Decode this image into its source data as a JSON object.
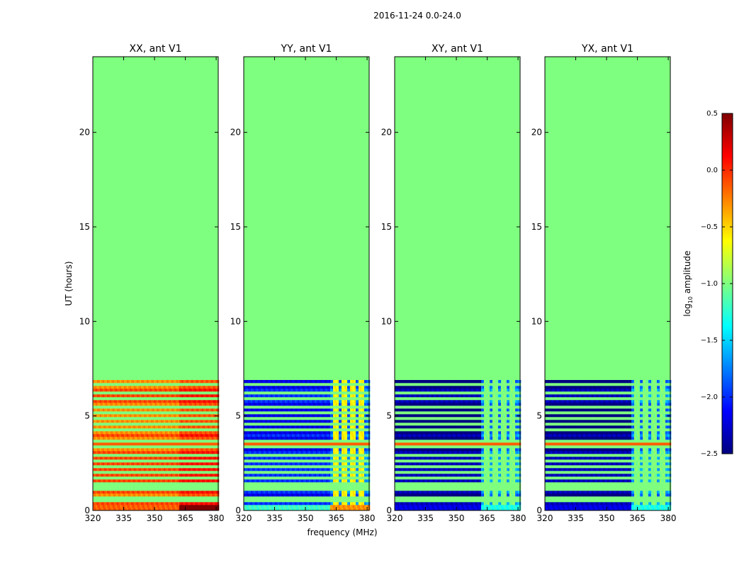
{
  "figure": {
    "suptitle": "2016-11-24 0.0-24.0",
    "ylabel": "UT (hours)",
    "xlabel": "frequency (MHz)"
  },
  "colorbar": {
    "label": "log$_{10}$ amplitude",
    "label_main": "log",
    "label_sub": "10",
    "label_rest": " amplitude",
    "range": [
      -2.5,
      0.5
    ],
    "ticks": [
      0.5,
      0.0,
      -0.5,
      -1.0,
      -1.5,
      -2.0,
      -2.5
    ],
    "tick_labels": [
      "0.5",
      "0.0",
      "−0.5",
      "−1.0",
      "−1.5",
      "−2.0",
      "−2.5"
    ],
    "colormap": "jet",
    "colormap_stops": [
      "#00007f",
      "#0000ff",
      "#007fff",
      "#00ffff",
      "#7fff7f",
      "#ffff00",
      "#ff7f00",
      "#ff0000",
      "#7f0000"
    ]
  },
  "chart_data": {
    "type": "heatmap",
    "x_range": [
      320,
      381
    ],
    "y_range": [
      0,
      24
    ],
    "x_ticks": [
      320,
      335,
      350,
      365,
      380
    ],
    "y_ticks": [
      0,
      5,
      10,
      15,
      20
    ],
    "fill_value": -1.0,
    "data_hours": [
      0,
      6.9
    ],
    "panels": [
      {
        "title": "XX, ant V1",
        "base": -0.2,
        "hf_delta": 0.35,
        "sub": -0.15,
        "rfi": -0.4
      },
      {
        "title": "YY, ant V1",
        "base": -2.1,
        "hf_delta": 0.6,
        "sub": -1.2,
        "rfi": -0.6
      },
      {
        "title": "XY, ant V1",
        "base": -2.45,
        "hf_delta": 1.4,
        "sub": -2.2,
        "rfi": -1.0
      },
      {
        "title": "YX, ant V1",
        "base": -2.45,
        "hf_delta": 1.4,
        "sub": -2.2,
        "rfi": -1.0
      }
    ],
    "flag_rows_hours": [
      0.45,
      0.65,
      1.2,
      1.4,
      1.7,
      2.0,
      2.3,
      2.6,
      2.85,
      3.4,
      3.7,
      4.05,
      4.25,
      4.55,
      4.85,
      5.15,
      5.45,
      5.7,
      5.95,
      6.15,
      6.45,
      6.7
    ],
    "orange_rows_hours": [
      3.55,
      3.75,
      6.3
    ],
    "rfi_channels_mhz": [
      365,
      369,
      373,
      377
    ]
  }
}
